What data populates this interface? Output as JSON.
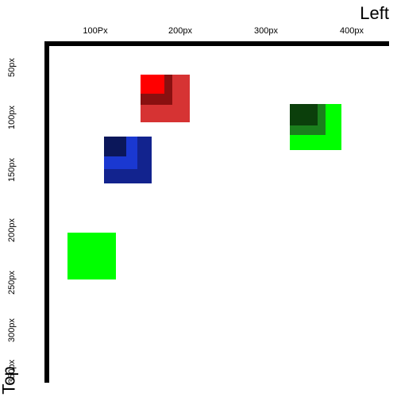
{
  "axes": {
    "x_label": "Left",
    "y_label": "Top",
    "x_ticks": [
      "100Px",
      "200px",
      "300px",
      "400px"
    ],
    "y_ticks": [
      "50px",
      "100px",
      "150px",
      "200px",
      "250px",
      "300px",
      "350px"
    ]
  },
  "colors": {
    "axis": "#000000",
    "background": "#ffffff",
    "green": "#00ff00",
    "red": "#d63333",
    "red_dark": "#891010",
    "red_bright": "#ff0000",
    "blue": "#12238e",
    "blue_mid": "#1a38d1",
    "blue_dark": "#0b175a",
    "green_box2": "#00ff00",
    "green_mid": "#1b7f1d",
    "green_dark": "#0b3f0b"
  }
}
